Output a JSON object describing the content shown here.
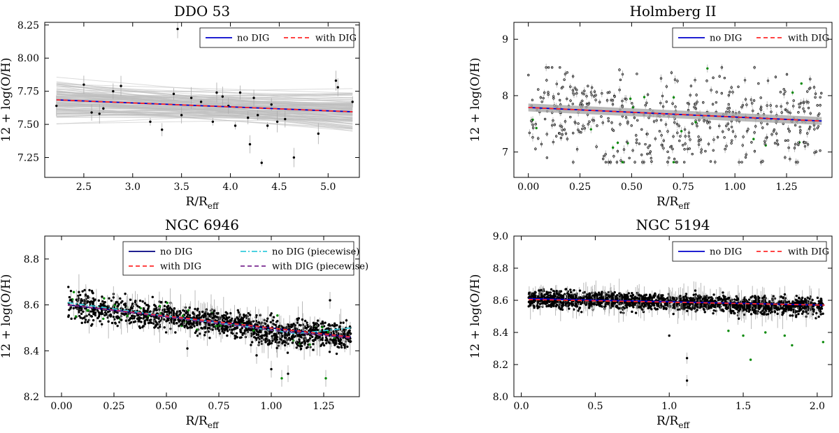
{
  "chart_data": [
    {
      "type": "scatter",
      "title": "DDO 53",
      "xlabel": "R/R",
      "xlabel_sub": "eff",
      "ylabel": "12 + log(O/H)",
      "xlim": [
        2.1,
        5.32
      ],
      "ylim": [
        7.1,
        8.27
      ],
      "xticks": [
        "2.5",
        "3.0",
        "3.5",
        "4.0",
        "4.5",
        "5.0"
      ],
      "yticks": [
        "7.25",
        "7.50",
        "7.75",
        "8.00",
        "8.25"
      ],
      "legend": {
        "placement": "top-right",
        "columns": 2,
        "entries": [
          "no DIG",
          "with DIG"
        ]
      },
      "series": [
        {
          "name": "no DIG",
          "style": "solid",
          "color": "#0000cc",
          "x": [
            2.22,
            5.25
          ],
          "y": [
            7.685,
            7.595
          ]
        },
        {
          "name": "with DIG",
          "style": "dashed",
          "color": "#ff2a2a",
          "x": [
            2.22,
            5.25
          ],
          "y": [
            7.685,
            7.595
          ]
        }
      ],
      "band": {
        "x": [
          2.22,
          5.25
        ],
        "y_low": [
          7.6,
          7.5
        ],
        "y_high": [
          7.77,
          7.7
        ]
      },
      "points": {
        "x": [
          2.22,
          2.5,
          2.58,
          2.66,
          2.7,
          2.8,
          2.88,
          3.18,
          3.3,
          3.42,
          3.46,
          3.5,
          3.6,
          3.7,
          3.82,
          3.86,
          3.92,
          3.98,
          4.05,
          4.1,
          4.18,
          4.2,
          4.24,
          4.28,
          4.32,
          4.38,
          4.42,
          4.48,
          4.56,
          4.65,
          4.9,
          5.08,
          5.1,
          5.25
        ],
        "y": [
          7.64,
          7.8,
          7.59,
          7.58,
          7.62,
          7.75,
          7.79,
          7.52,
          7.46,
          7.73,
          8.22,
          7.57,
          7.7,
          7.67,
          7.52,
          7.74,
          7.71,
          7.64,
          7.49,
          7.74,
          7.55,
          7.35,
          7.7,
          7.57,
          7.21,
          7.49,
          7.65,
          7.52,
          7.54,
          7.25,
          7.43,
          7.83,
          7.78,
          7.67
        ]
      }
    },
    {
      "type": "scatter",
      "title": "Holmberg II",
      "xlabel": "R/R",
      "xlabel_sub": "eff",
      "ylabel": "12 + log(O/H)",
      "xlim": [
        -0.07,
        1.47
      ],
      "ylim": [
        6.55,
        9.3
      ],
      "xticks": [
        "0.00",
        "0.25",
        "0.50",
        "0.75",
        "1.00",
        "1.25"
      ],
      "xtick_values": [
        0,
        0.25,
        0.5,
        0.75,
        1.0,
        1.25
      ],
      "yticks": [
        "7",
        "8",
        "9"
      ],
      "legend": {
        "placement": "top-right",
        "columns": 2,
        "entries": [
          "no DIG",
          "with DIG"
        ]
      },
      "series": [
        {
          "name": "no DIG",
          "style": "solid",
          "color": "#0000cc",
          "x": [
            0.0,
            1.42
          ],
          "y": [
            7.79,
            7.55
          ]
        },
        {
          "name": "with DIG",
          "style": "dashed",
          "color": "#ff2a2a",
          "x": [
            0.0,
            1.42
          ],
          "y": [
            7.79,
            7.55
          ]
        }
      ],
      "points_summary": {
        "x_range": [
          0.0,
          1.42
        ],
        "y_range": [
          6.8,
          8.55
        ],
        "count": 500
      }
    },
    {
      "type": "scatter",
      "title": "NGC 6946",
      "xlabel": "R/R",
      "xlabel_sub": "eff",
      "ylabel": "12 + log(O/H)",
      "xlim": [
        -0.08,
        1.42
      ],
      "ylim": [
        8.2,
        8.9
      ],
      "xticks": [
        "0.00",
        "0.25",
        "0.50",
        "0.75",
        "1.00",
        "1.25"
      ],
      "xtick_values": [
        0,
        0.25,
        0.5,
        0.75,
        1.0,
        1.25
      ],
      "yticks": [
        "8.2",
        "8.4",
        "8.6",
        "8.8"
      ],
      "legend": {
        "placement": "top-right",
        "columns": 2,
        "entries": [
          "no DIG",
          "no DIG (piecewise)",
          "with DIG",
          "with DIG (piecewise)"
        ]
      },
      "series": [
        {
          "name": "no DIG",
          "style": "solid",
          "color": "#000080",
          "x": [
            0.03,
            1.38
          ],
          "y": [
            8.6,
            8.46
          ]
        },
        {
          "name": "no DIG (piecewise)",
          "style": "dashdot",
          "color": "#33ccdd",
          "x": [
            0.03,
            1.12,
            1.38
          ],
          "y": [
            8.61,
            8.475,
            8.5
          ]
        },
        {
          "name": "with DIG",
          "style": "dashed",
          "color": "#ff2a2a",
          "x": [
            0.03,
            1.38
          ],
          "y": [
            8.6,
            8.46
          ]
        },
        {
          "name": "with DIG (piecewise)",
          "style": "dashed",
          "color": "#7a2a90",
          "x": [
            0.03,
            1.0,
            1.38
          ],
          "y": [
            8.6,
            8.49,
            8.455
          ]
        }
      ],
      "points_summary": {
        "x_range": [
          0.03,
          1.38
        ],
        "y_range": [
          8.28,
          8.66
        ],
        "count": 1500
      }
    },
    {
      "type": "scatter",
      "title": "NGC 5194",
      "xlabel": "R/R",
      "xlabel_sub": "eff",
      "ylabel": "12 + log(O/H)",
      "xlim": [
        -0.05,
        2.1
      ],
      "ylim": [
        8.0,
        9.0
      ],
      "xticks": [
        "0.0",
        "0.5",
        "1.0",
        "1.5",
        "2.0"
      ],
      "xtick_values": [
        0,
        0.5,
        1.0,
        1.5,
        2.0
      ],
      "yticks": [
        "8.0",
        "8.2",
        "8.4",
        "8.6",
        "8.8",
        "9.0"
      ],
      "legend": {
        "placement": "top-right",
        "columns": 2,
        "entries": [
          "no DIG",
          "with DIG"
        ]
      },
      "series": [
        {
          "name": "no DIG",
          "style": "solid",
          "color": "#0000cc",
          "x": [
            0.05,
            2.05
          ],
          "y": [
            8.61,
            8.57
          ]
        },
        {
          "name": "with DIG",
          "style": "dashed",
          "color": "#ff2a2a",
          "x": [
            0.05,
            2.05
          ],
          "y": [
            8.605,
            8.57
          ]
        }
      ],
      "points_summary": {
        "x_range": [
          0.05,
          2.04
        ],
        "y_range": [
          8.1,
          8.7
        ],
        "count": 2000
      },
      "outliers": {
        "x": [
          1.12,
          1.12,
          1.0,
          1.4,
          1.5,
          1.55,
          1.65,
          1.78,
          1.83,
          2.04
        ],
        "y": [
          8.1,
          8.24,
          8.38,
          8.41,
          8.38,
          8.23,
          8.4,
          8.38,
          8.32,
          8.34
        ]
      }
    }
  ]
}
